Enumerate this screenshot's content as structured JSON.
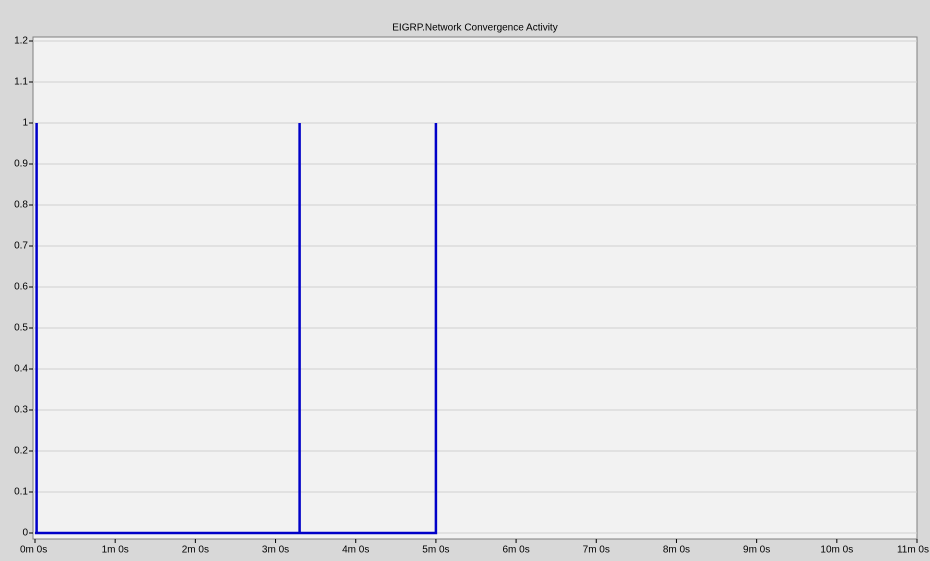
{
  "chart_data": {
    "type": "line",
    "title": "EIGRP.Network Convergence Activity",
    "x": [
      0,
      0.02,
      0.02,
      0.02,
      3.3,
      3.3,
      3.3,
      5.0,
      5.0,
      5.0
    ],
    "series": [
      {
        "name": "EIGRP.Network Convergence Activity",
        "color": "#0000c8",
        "values": [
          0,
          0,
          1,
          0,
          0,
          1,
          0,
          0,
          1,
          0
        ]
      }
    ],
    "xlim": [
      0,
      11
    ],
    "xticks": [
      {
        "value": 0,
        "label": "0m 0s"
      },
      {
        "value": 1,
        "label": "1m 0s"
      },
      {
        "value": 2,
        "label": "2m 0s"
      },
      {
        "value": 3,
        "label": "3m 0s"
      },
      {
        "value": 4,
        "label": "4m 0s"
      },
      {
        "value": 5,
        "label": "5m 0s"
      },
      {
        "value": 6,
        "label": "6m 0s"
      },
      {
        "value": 7,
        "label": "7m 0s"
      },
      {
        "value": 8,
        "label": "8m 0s"
      },
      {
        "value": 9,
        "label": "9m 0s"
      },
      {
        "value": 10,
        "label": "10m 0s"
      },
      {
        "value": 11,
        "label": "11m 0s"
      }
    ],
    "ylim": [
      0,
      1.2
    ],
    "yticks": [
      0,
      0.1,
      0.2,
      0.3,
      0.4,
      0.5,
      0.6,
      0.7,
      0.8,
      0.9,
      1,
      1.1,
      1.2
    ],
    "grid": true
  }
}
